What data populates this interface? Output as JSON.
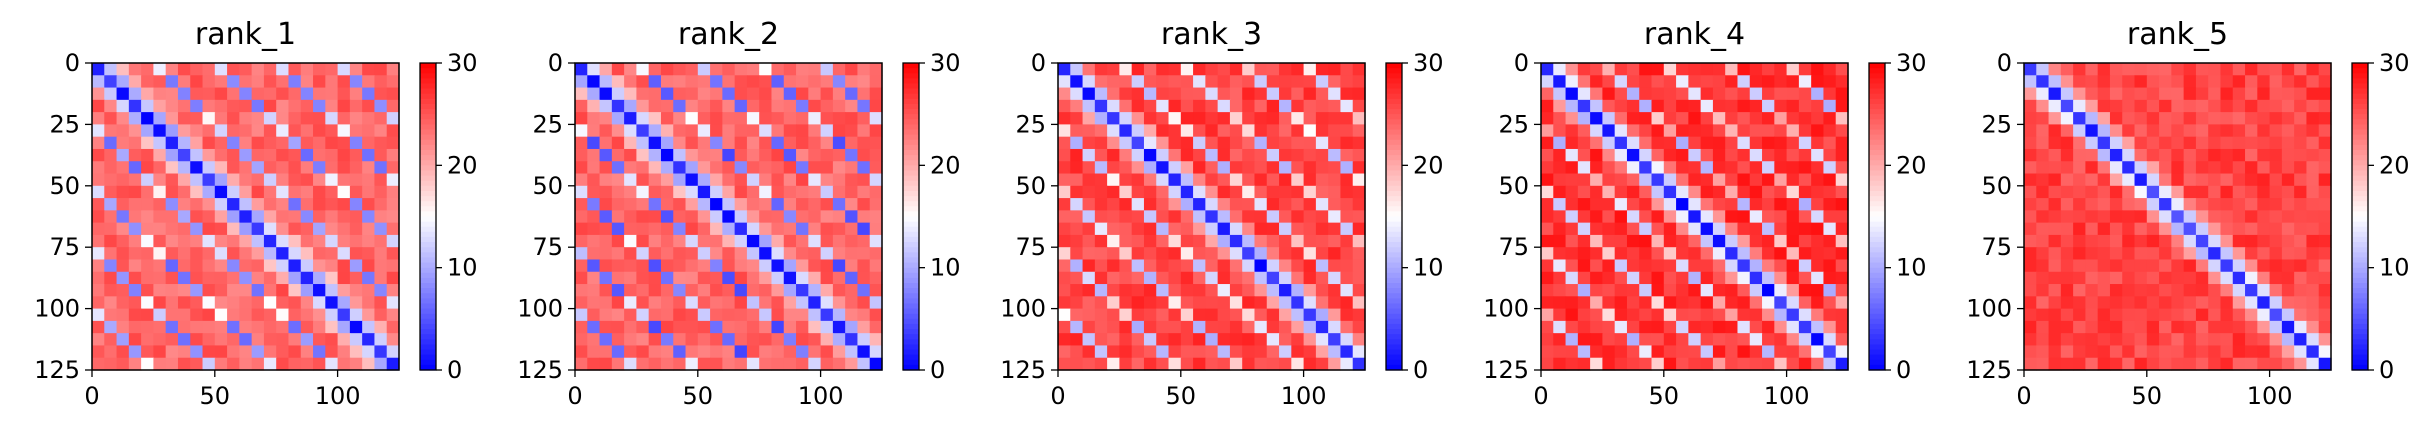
{
  "chart_data": [
    {
      "type": "heatmap",
      "title": "rank_1",
      "x_ticks": [
        0,
        50,
        100
      ],
      "y_ticks": [
        0,
        25,
        50,
        75,
        100,
        125
      ],
      "xlim": [
        0,
        125
      ],
      "ylim": [
        125,
        0
      ],
      "colorbar": {
        "ticks": [
          0,
          10,
          20,
          30
        ],
        "range": [
          0,
          30
        ],
        "colormap": "bwr",
        "low_color": "#0000ff",
        "mid_color": "#ffffff",
        "high_color": "#ff0000"
      },
      "pattern": {
        "diagonal_value": 2,
        "background_value": 24,
        "stripe_period": 25,
        "stripe_value": 14,
        "blob_value": 8,
        "noise": 2
      }
    },
    {
      "type": "heatmap",
      "title": "rank_2",
      "x_ticks": [
        0,
        50,
        100
      ],
      "y_ticks": [
        0,
        25,
        50,
        75,
        100,
        125
      ],
      "xlim": [
        0,
        125
      ],
      "ylim": [
        125,
        0
      ],
      "colorbar": {
        "ticks": [
          0,
          10,
          20,
          30
        ],
        "range": [
          0,
          30
        ],
        "colormap": "bwr",
        "low_color": "#0000ff",
        "mid_color": "#ffffff",
        "high_color": "#ff0000"
      },
      "pattern": {
        "diagonal_value": 2,
        "background_value": 24,
        "stripe_period": 25,
        "stripe_value": 13,
        "blob_value": 6,
        "noise": 2
      }
    },
    {
      "type": "heatmap",
      "title": "rank_3",
      "x_ticks": [
        0,
        50,
        100
      ],
      "y_ticks": [
        0,
        25,
        50,
        75,
        100,
        125
      ],
      "xlim": [
        0,
        125
      ],
      "ylim": [
        125,
        0
      ],
      "colorbar": {
        "ticks": [
          0,
          10,
          20,
          30
        ],
        "range": [
          0,
          30
        ],
        "colormap": "bwr",
        "low_color": "#0000ff",
        "mid_color": "#ffffff",
        "high_color": "#ff0000"
      },
      "pattern": {
        "diagonal_value": 2,
        "background_value": 26,
        "stripe_period": 25,
        "stripe_value": 17,
        "blob_value": 12,
        "noise": 2
      }
    },
    {
      "type": "heatmap",
      "title": "rank_4",
      "x_ticks": [
        0,
        50,
        100
      ],
      "y_ticks": [
        0,
        25,
        50,
        75,
        100,
        125
      ],
      "xlim": [
        0,
        125
      ],
      "ylim": [
        125,
        0
      ],
      "colorbar": {
        "ticks": [
          0,
          10,
          20,
          30
        ],
        "range": [
          0,
          30
        ],
        "colormap": "bwr",
        "low_color": "#0000ff",
        "mid_color": "#ffffff",
        "high_color": "#ff0000"
      },
      "pattern": {
        "diagonal_value": 2,
        "background_value": 27,
        "stripe_period": 25,
        "stripe_value": 19,
        "blob_value": 12,
        "noise": 2
      }
    },
    {
      "type": "heatmap",
      "title": "rank_5",
      "x_ticks": [
        0,
        50,
        100
      ],
      "y_ticks": [
        0,
        25,
        50,
        75,
        100,
        125
      ],
      "xlim": [
        0,
        125
      ],
      "ylim": [
        125,
        0
      ],
      "colorbar": {
        "ticks": [
          0,
          10,
          20,
          30
        ],
        "range": [
          0,
          30
        ],
        "colormap": "bwr",
        "low_color": "#0000ff",
        "mid_color": "#ffffff",
        "high_color": "#ff0000"
      },
      "pattern": {
        "diagonal_value": 3,
        "background_value": 26,
        "stripe_period": 0,
        "stripe_value": 26,
        "blob_value": 26,
        "noise": 2
      }
    }
  ]
}
